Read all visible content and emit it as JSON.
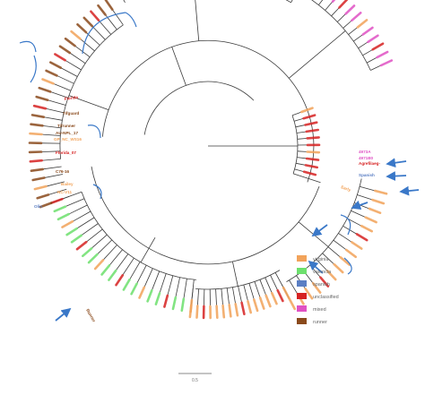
{
  "legend": {
    "items": [
      {
        "label": "virginia",
        "color": "#f2a35a"
      },
      {
        "label": "valencia",
        "color": "#6de06d"
      },
      {
        "label": "spanish",
        "color": "#5b7fc4"
      },
      {
        "label": "unclassified",
        "color": "#d62222"
      },
      {
        "label": "mixed",
        "color": "#e052c4"
      },
      {
        "label": "runner",
        "color": "#8a4a1c"
      }
    ]
  },
  "scale_bar": {
    "label": "0.5"
  },
  "tree": {
    "labels": [
      {
        "text": "4973A",
        "type": "mixed"
      },
      {
        "text": "4971B0",
        "type": "mixed"
      },
      {
        "text": "Agrefilaeg-",
        "type": "unclassified"
      },
      {
        "text": "Spanish",
        "type": "spanish"
      },
      {
        "text": "Early",
        "type": "virginia"
      },
      {
        "text": "Florida",
        "type": "unclassified"
      },
      {
        "text": "Tifguard",
        "type": "runner"
      },
      {
        "text": "Tifrunner",
        "type": "runner"
      },
      {
        "text": "AU-NPL_17",
        "type": "runner"
      },
      {
        "text": "GP_NC_WS16",
        "type": "virginia"
      },
      {
        "text": "Florida_07",
        "type": "unclassified"
      },
      {
        "text": "C76-16",
        "type": "runner"
      },
      {
        "text": "Olin",
        "type": "spanish"
      },
      {
        "text": "Bailey",
        "type": "virginia"
      },
      {
        "text": "NC-V11",
        "type": "virginia"
      },
      {
        "text": "Runner",
        "type": "runner"
      }
    ]
  }
}
